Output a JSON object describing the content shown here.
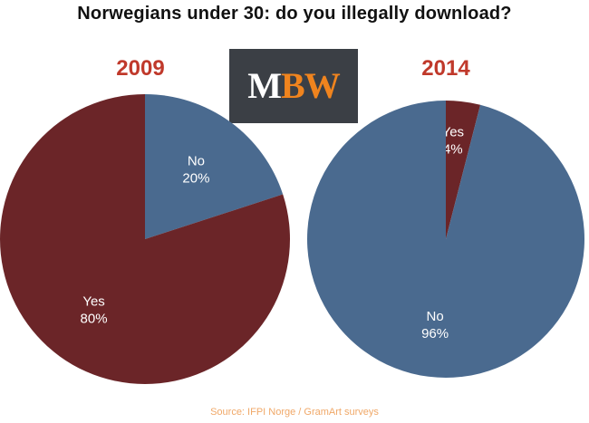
{
  "title": "Norwegians under 30: do you illegally download?",
  "logo": {
    "m": "M",
    "bw": "BW"
  },
  "source": "Source:  IFPI Norge / GramArt surveys",
  "colors": {
    "year": "#c0392b",
    "yes": "#6b2528",
    "no": "#4a6a8f",
    "source": "#f0a868"
  },
  "chart_data": [
    {
      "type": "pie",
      "title": "2009",
      "slices": [
        {
          "label": "No",
          "value": 20,
          "display": "20%"
        },
        {
          "label": "Yes",
          "value": 80,
          "display": "80%"
        }
      ]
    },
    {
      "type": "pie",
      "title": "2014",
      "slices": [
        {
          "label": "Yes",
          "value": 4,
          "display": "4%"
        },
        {
          "label": "No",
          "value": 96,
          "display": "96%"
        }
      ]
    }
  ]
}
